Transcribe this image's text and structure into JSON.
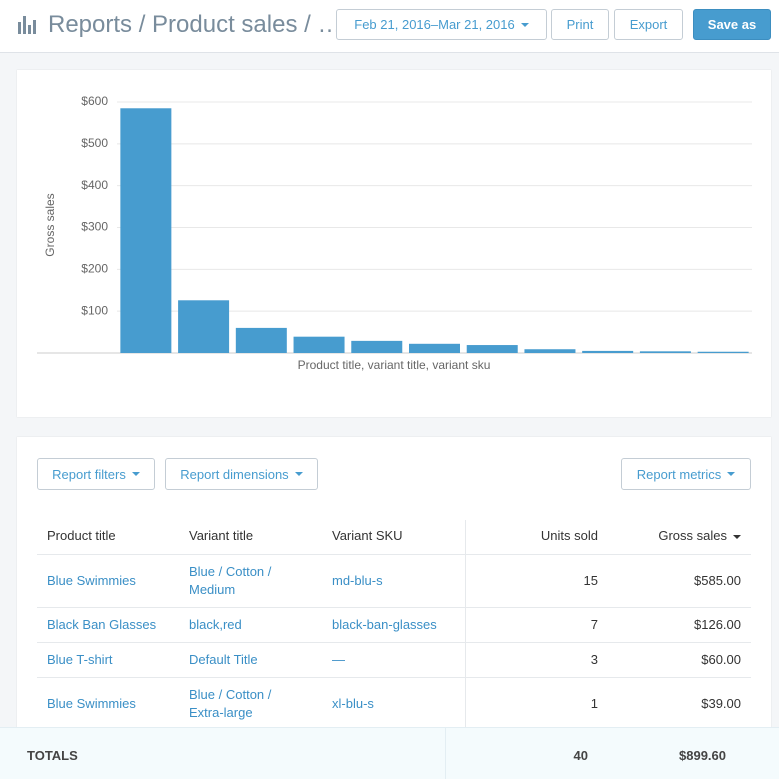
{
  "header": {
    "title": "Reports / Product sales / …",
    "date_range": "Feb 21, 2016–Mar 21, 2016",
    "buttons": [
      "Print",
      "Export",
      "Save as"
    ]
  },
  "chart_data": {
    "type": "bar",
    "y_label": "Gross sales",
    "x_label": "Product title, variant title, variant sku",
    "categories": [
      null,
      null,
      null,
      null,
      null,
      null,
      null,
      null,
      null,
      null,
      null
    ],
    "values": [
      585,
      126,
      60,
      39,
      29,
      22,
      19,
      9,
      5,
      4,
      3
    ],
    "color": "#479ccf",
    "ylim": [
      0,
      600
    ],
    "yticks": [
      {
        "value": 100,
        "label": "$100"
      },
      {
        "value": 200,
        "label": "$200"
      },
      {
        "value": 300,
        "label": "$300"
      },
      {
        "value": 400,
        "label": "$400"
      },
      {
        "value": 500,
        "label": "$500"
      },
      {
        "value": 600,
        "label": "$600"
      }
    ],
    "grid": true
  },
  "table": {
    "controls": [
      "Report filters",
      "Report dimensions",
      "Report metrics"
    ],
    "columns": [
      "Product title",
      "Variant title",
      "Variant SKU",
      "Units sold",
      "Gross sales"
    ],
    "rows": [
      [
        "Blue Swimmies",
        "Blue / Cotton / Medium",
        "md-blu-s",
        15,
        "$585.00"
      ],
      [
        "Black Ban Glasses",
        "black,red",
        "black-ban-glasses",
        7,
        "$126.00"
      ],
      [
        "Blue T-shirt",
        "Default Title",
        "—",
        3,
        "$60.00"
      ],
      [
        "Blue Swimmies",
        "Blue / Cotton / Extra-large",
        "xl-blu-s",
        1,
        "$39.00"
      ]
    ]
  },
  "totals": {
    "label": "TOTALS",
    "units_sold": 40,
    "gross_sales": "$899.60"
  }
}
